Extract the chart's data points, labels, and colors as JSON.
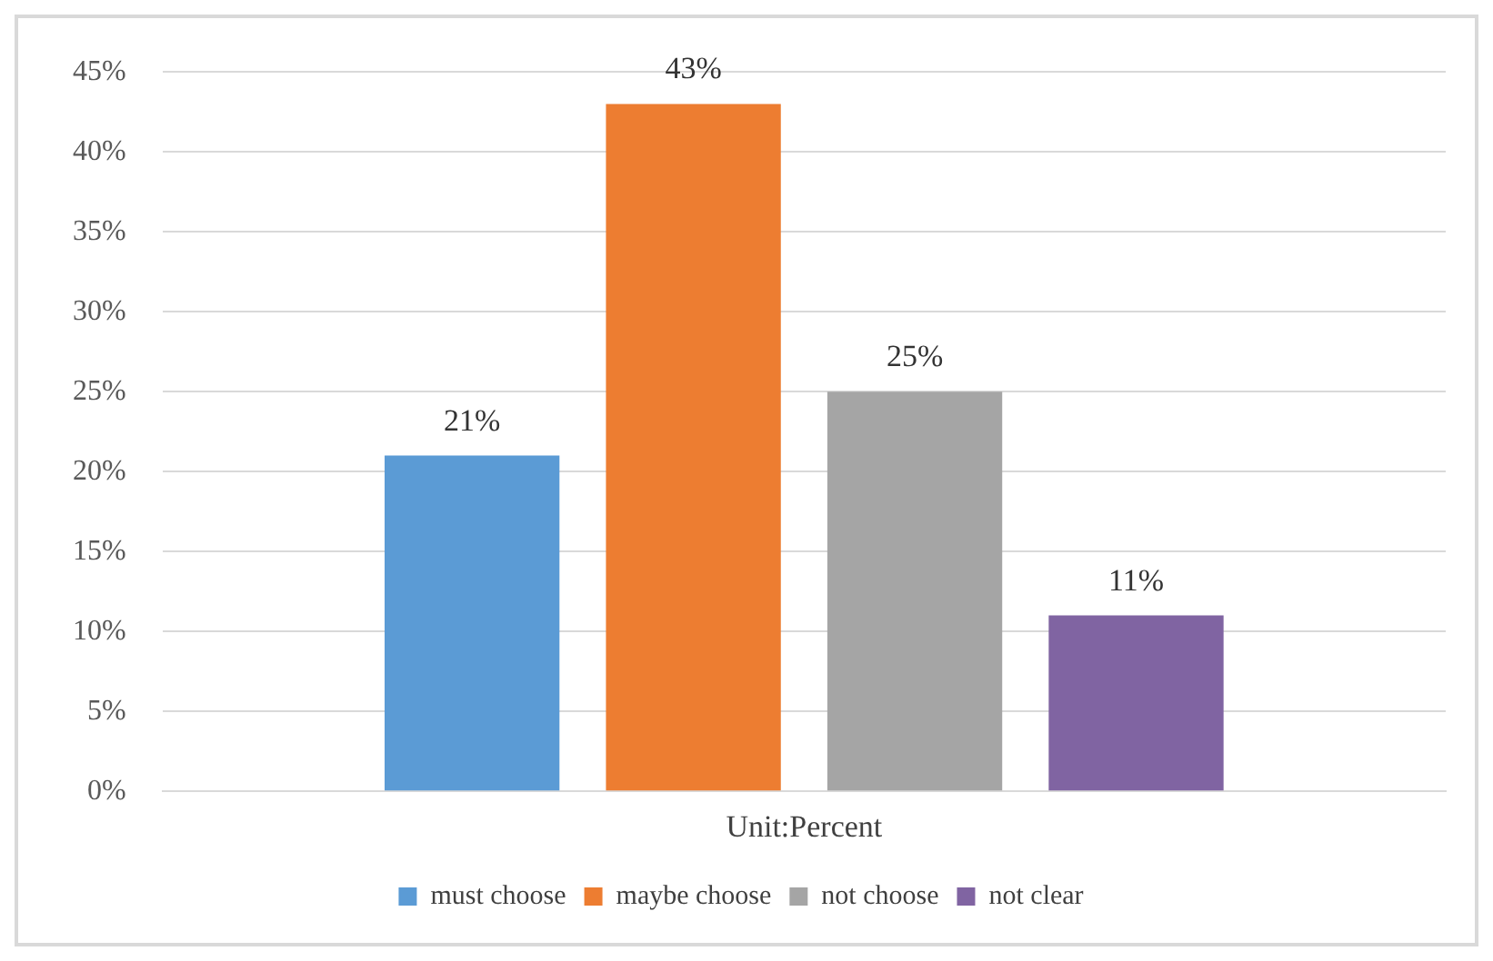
{
  "chart_data": {
    "type": "bar",
    "categories": [
      "Unit:Percent"
    ],
    "series": [
      {
        "name": "must choose",
        "color": "#5b9bd5",
        "values": [
          21
        ],
        "value_labels": [
          "21%"
        ]
      },
      {
        "name": "maybe choose",
        "color": "#ed7d31",
        "values": [
          43
        ],
        "value_labels": [
          "43%"
        ]
      },
      {
        "name": "not choose",
        "color": "#a5a5a5",
        "values": [
          25
        ],
        "value_labels": [
          "25%"
        ]
      },
      {
        "name": "not clear",
        "color": "#8064a2",
        "values": [
          11
        ],
        "value_labels": [
          "11%"
        ]
      }
    ],
    "ylim": [
      0,
      45
    ],
    "yticks": [
      {
        "value": 0,
        "label": "0%"
      },
      {
        "value": 5,
        "label": "5%"
      },
      {
        "value": 10,
        "label": "10%"
      },
      {
        "value": 15,
        "label": "15%"
      },
      {
        "value": 20,
        "label": "20%"
      },
      {
        "value": 25,
        "label": "25%"
      },
      {
        "value": 30,
        "label": "30%"
      },
      {
        "value": 35,
        "label": "35%"
      },
      {
        "value": 40,
        "label": "40%"
      },
      {
        "value": 45,
        "label": "45%"
      }
    ],
    "grid": "y",
    "legend": "bottom"
  }
}
